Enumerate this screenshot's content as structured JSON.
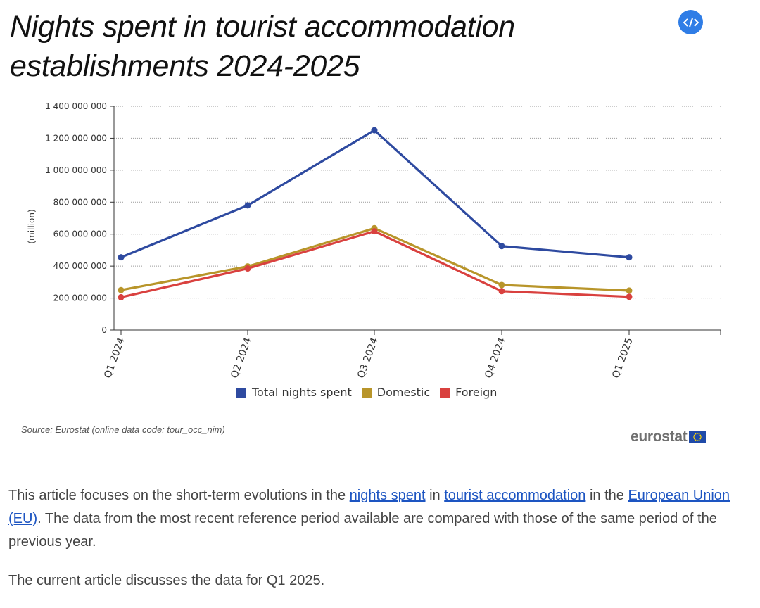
{
  "title": "Nights spent in tourist accommodation establishments 2024-2025",
  "embed_button": {
    "label": "</>"
  },
  "chart_data": {
    "type": "line",
    "title": "Nights spent in tourist accommodation establishments 2024-2025",
    "xlabel": "",
    "ylabel": "(million)",
    "categories": [
      "Q1 2024",
      "Q2 2024",
      "Q3 2024",
      "Q4 2024",
      "Q1 2025"
    ],
    "ylim": [
      0,
      1400000000
    ],
    "yticks": [
      0,
      200000000,
      400000000,
      600000000,
      800000000,
      1000000000,
      1200000000,
      1400000000
    ],
    "ytick_labels": [
      "0",
      "200 000 000",
      "400 000 000",
      "600 000 000",
      "800 000 000",
      "1 000 000 000",
      "1 200 000 000",
      "1 400 000 000"
    ],
    "grid": true,
    "legend_position": "bottom",
    "series": [
      {
        "name": "Total nights spent",
        "color": "#2e4aa0",
        "values": [
          455000000,
          780000000,
          1250000000,
          525000000,
          455000000
        ]
      },
      {
        "name": "Domestic",
        "color": "#b8952a",
        "values": [
          250000000,
          398000000,
          637000000,
          282000000,
          247000000
        ]
      },
      {
        "name": "Foreign",
        "color": "#d9413f",
        "values": [
          205000000,
          385000000,
          618000000,
          243000000,
          208000000
        ]
      }
    ]
  },
  "source_text": "Source: Eurostat (online data code: tour_occ_nim)",
  "logo_text": "eurostat",
  "article": {
    "p1_a": "This article focuses on the short-term evolutions in the ",
    "link_nights_spent": "nights spent",
    "p1_b": " in ",
    "link_tourist_accommodation": "tourist accommodation",
    "p1_c": " in the ",
    "link_eu": "European Union (EU)",
    "p1_d": ". The data from the most recent reference period available are compared with those of the same period of the previous year.",
    "p2": "The current article discusses the data for Q1 2025."
  }
}
